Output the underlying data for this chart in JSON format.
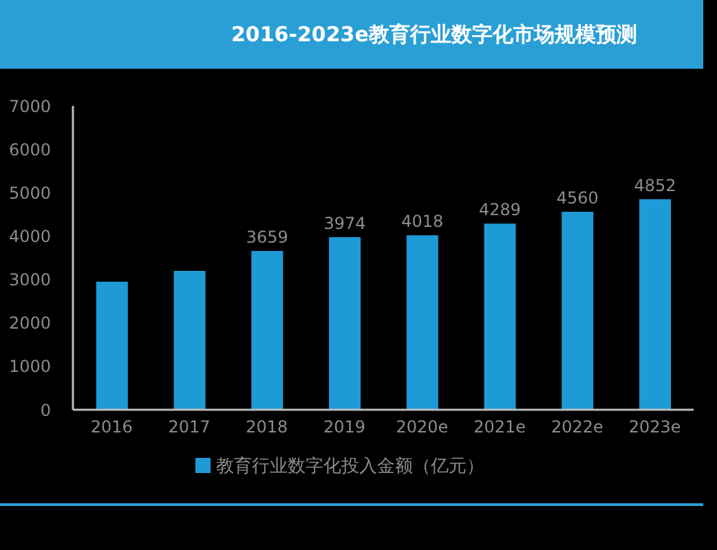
{
  "chart_data": {
    "type": "bar",
    "title": "2016-2023e教育行业数字化市场规模预测",
    "categories": [
      "2016",
      "2017",
      "2018",
      "2019",
      "2020e",
      "2021e",
      "2022e",
      "2023e"
    ],
    "series": [
      {
        "name": "教育行业数字化投入金额（亿元）",
        "color": "#1e9ad6",
        "values": [
          2950,
          3200,
          3659,
          3974,
          4018,
          4289,
          4560,
          4852
        ],
        "value_labels": [
          null,
          null,
          "3659",
          "3974",
          "4018",
          "4289",
          "4560",
          "4852"
        ]
      }
    ],
    "ylim": [
      0,
      7000
    ],
    "yticks": [
      0,
      1000,
      2000,
      3000,
      4000,
      5000,
      6000,
      7000
    ],
    "legend": "bottom"
  }
}
